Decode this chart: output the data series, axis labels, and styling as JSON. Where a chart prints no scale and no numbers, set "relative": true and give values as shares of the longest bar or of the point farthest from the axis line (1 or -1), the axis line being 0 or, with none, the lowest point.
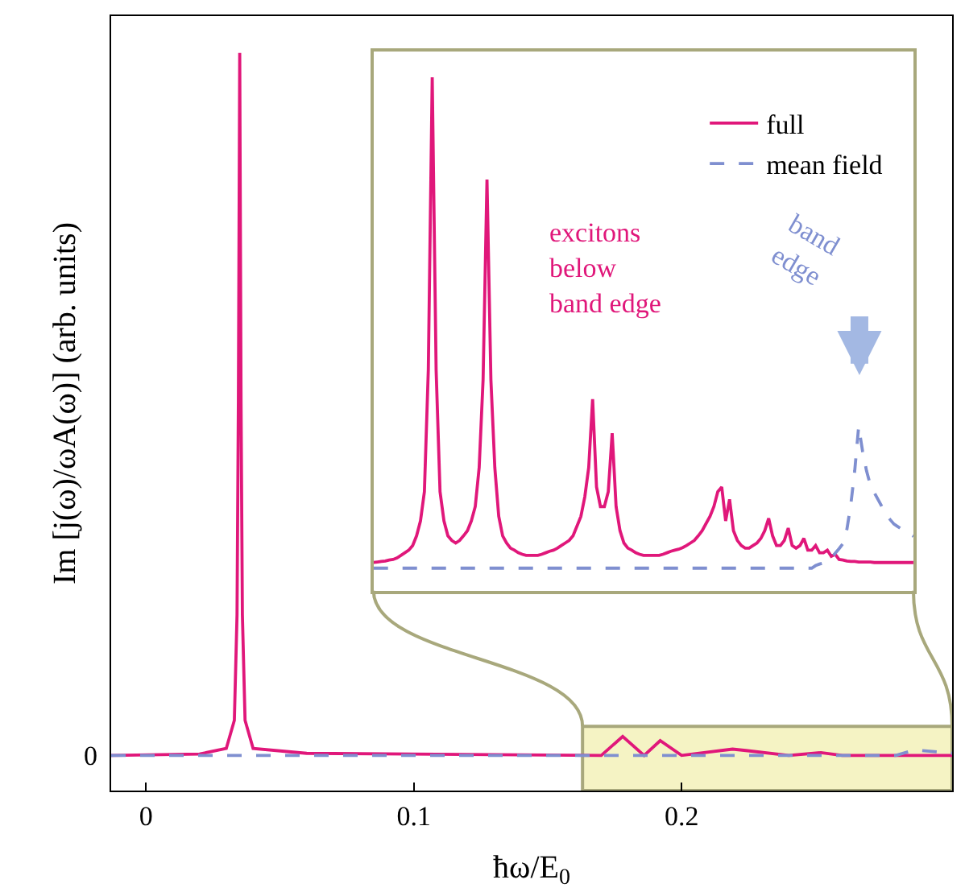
{
  "chart_data": [
    {
      "type": "line",
      "relative": true,
      "xlabel": "ħω/E$_{0}$",
      "ylabel": "Im [j(ω)/ωA(ω)] (arb. units)",
      "xlim": [
        -0.013,
        0.301
      ],
      "xticks": [
        0,
        0.1,
        0.2
      ],
      "grid": false,
      "legend": false,
      "annotations": [
        "0"
      ],
      "bands": [
        {
          "axis": "x",
          "from": 0.163,
          "to": 0.301,
          "color": "#f5f3c4"
        }
      ],
      "series": [
        {
          "color": "#e0177a",
          "x": [
            -0.013,
            0.02,
            0.03,
            0.033,
            0.034,
            0.0345,
            0.035,
            0.0355,
            0.036,
            0.037,
            0.04,
            0.06,
            0.17,
            0.178,
            0.186,
            0.192,
            0.2,
            0.219,
            0.224,
            0.24,
            0.252,
            0.26,
            0.301
          ],
          "values": [
            0,
            0.002,
            0.01,
            0.05,
            0.2,
            0.5,
            1,
            0.5,
            0.2,
            0.05,
            0.01,
            0.003,
            0,
            0.027,
            0,
            0.021,
            0,
            0.009,
            0.007,
            0,
            0.004,
            0,
            0
          ]
        },
        {
          "color": "#7f8fd0",
          "line_style": "dashed",
          "x": [
            -0.013,
            0.28,
            0.287,
            0.301
          ],
          "values": [
            0,
            0,
            0.008,
            0.003
          ]
        }
      ]
    },
    {
      "type": "line",
      "relative": true,
      "tick_labels": false,
      "grid": false,
      "legend": "top right",
      "categories": [
        null,
        null,
        null,
        null,
        null,
        null,
        null,
        null,
        null,
        null,
        null,
        null,
        null,
        null,
        null,
        null,
        null,
        null,
        null,
        null,
        null,
        null,
        null,
        null,
        null,
        null,
        null,
        null,
        null,
        null,
        null,
        null,
        null,
        null,
        null,
        null,
        null,
        null,
        null,
        null,
        null,
        null,
        null,
        null,
        null,
        null,
        null,
        null,
        null,
        null,
        null,
        null,
        null,
        null,
        null,
        null,
        null,
        null,
        null,
        null,
        null,
        null,
        null,
        null,
        null,
        null,
        null,
        null,
        null,
        null,
        null,
        null,
        null,
        null,
        null,
        null,
        null,
        null,
        null,
        null,
        null,
        null,
        null,
        null,
        null,
        null,
        null,
        null,
        null,
        null,
        null,
        null,
        null,
        null,
        null,
        null,
        null,
        null,
        null,
        null,
        null,
        null,
        null,
        null,
        null,
        null,
        null,
        null,
        null,
        null,
        null,
        null,
        null,
        null,
        null,
        null,
        null,
        null,
        null,
        null,
        null,
        null,
        null,
        null,
        null,
        null,
        null,
        null,
        null,
        null,
        null,
        null,
        null,
        null,
        null,
        null,
        null,
        null,
        null
      ],
      "annotations": [
        "excitons\nbelow\nband edge",
        "band edge"
      ],
      "series": [
        {
          "name": "full",
          "color": "#e0177a",
          "values": [
            0.055,
            0.056,
            0.057,
            0.058,
            0.06,
            0.061,
            0.064,
            0.069,
            0.074,
            0.079,
            0.088,
            0.107,
            0.136,
            0.193,
            0.43,
            1,
            0.43,
            0.193,
            0.136,
            0.107,
            0.098,
            0.093,
            0.098,
            0.107,
            0.117,
            0.136,
            0.164,
            0.24,
            0.411,
            0.801,
            0.411,
            0.24,
            0.145,
            0.107,
            0.093,
            0.083,
            0.079,
            0.074,
            0.071,
            0.069,
            0.069,
            0.069,
            0.069,
            0.071,
            0.074,
            0.077,
            0.079,
            0.083,
            0.088,
            0.093,
            0.098,
            0.107,
            0.126,
            0.145,
            0.183,
            0.24,
            0.373,
            0.202,
            0.164,
            0.164,
            0.193,
            0.307,
            0.164,
            0.117,
            0.093,
            0.083,
            0.079,
            0.074,
            0.071,
            0.069,
            0.069,
            0.069,
            0.069,
            0.069,
            0.071,
            0.074,
            0.077,
            0.079,
            0.081,
            0.084,
            0.088,
            0.093,
            0.098,
            0.107,
            0.117,
            0.131,
            0.145,
            0.164,
            0.193,
            0.202,
            0.136,
            0.178,
            0.117,
            0.098,
            0.088,
            0.083,
            0.083,
            0.088,
            0.093,
            0.102,
            0.117,
            0.141,
            0.107,
            0.088,
            0.088,
            0.098,
            0.122,
            0.088,
            0.083,
            0.088,
            0.102,
            0.079,
            0.079,
            0.088,
            0.074,
            0.074,
            0.079,
            0.067,
            0.071,
            0.061,
            0.06,
            0.058,
            0.057,
            0.057,
            0.056,
            0.056,
            0.056,
            0.056,
            0.055,
            0.055,
            0.055,
            0.055,
            0.055,
            0.055,
            0.055,
            0.055,
            0.055,
            0.055,
            0.055
          ]
        },
        {
          "name": "mean field",
          "color": "#7f8fd0",
          "line_style": "dashed",
          "values": [
            0.044,
            0.044,
            0.044,
            0.044,
            0.044,
            0.044,
            0.044,
            0.044,
            0.044,
            0.044,
            0.044,
            0.044,
            0.044,
            0.044,
            0.044,
            0.044,
            0.044,
            0.044,
            0.044,
            0.044,
            0.044,
            0.044,
            0.044,
            0.044,
            0.044,
            0.044,
            0.044,
            0.044,
            0.044,
            0.044,
            0.044,
            0.044,
            0.044,
            0.044,
            0.044,
            0.044,
            0.044,
            0.044,
            0.044,
            0.044,
            0.044,
            0.044,
            0.044,
            0.044,
            0.044,
            0.044,
            0.044,
            0.044,
            0.044,
            0.044,
            0.044,
            0.044,
            0.044,
            0.044,
            0.044,
            0.044,
            0.044,
            0.044,
            0.044,
            0.044,
            0.044,
            0.044,
            0.044,
            0.044,
            0.044,
            0.044,
            0.044,
            0.044,
            0.044,
            0.044,
            0.044,
            0.044,
            0.044,
            0.044,
            0.044,
            0.044,
            0.044,
            0.044,
            0.044,
            0.044,
            0.044,
            0.044,
            0.044,
            0.044,
            0.044,
            0.044,
            0.044,
            0.044,
            0.044,
            0.044,
            0.044,
            0.044,
            0.044,
            0.044,
            0.044,
            0.044,
            0.044,
            0.044,
            0.044,
            0.044,
            0.044,
            0.044,
            0.044,
            0.044,
            0.044,
            0.044,
            0.044,
            0.044,
            0.044,
            0.044,
            0.044,
            0.044,
            0.044,
            0.049,
            0.052,
            0.054,
            0.058,
            0.063,
            0.073,
            0.082,
            0.092,
            0.12,
            0.168,
            0.234,
            0.32,
            0.272,
            0.234,
            0.206,
            0.191,
            0.177,
            0.163,
            0.149,
            0.139,
            0.13,
            0.125,
            0.12,
            0.115,
            0.111,
            0.106
          ]
        }
      ]
    }
  ]
}
